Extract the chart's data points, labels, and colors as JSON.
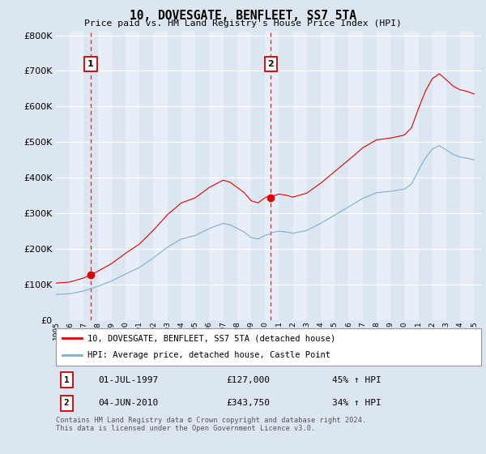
{
  "title": "10, DOVESGATE, BENFLEET, SS7 5TA",
  "subtitle": "Price paid vs. HM Land Registry's House Price Index (HPI)",
  "legend_line1": "10, DOVESGATE, BENFLEET, SS7 5TA (detached house)",
  "legend_line2": "HPI: Average price, detached house, Castle Point",
  "annotation1_date": "01-JUL-1997",
  "annotation1_price": "£127,000",
  "annotation1_hpi": "45% ↑ HPI",
  "annotation2_date": "04-JUN-2010",
  "annotation2_price": "£343,750",
  "annotation2_hpi": "34% ↑ HPI",
  "footer": "Contains HM Land Registry data © Crown copyright and database right 2024.\nThis data is licensed under the Open Government Licence v3.0.",
  "sale1_year": 1997.5,
  "sale1_value": 127000,
  "sale2_year": 2010.42,
  "sale2_value": 343750,
  "red_line_color": "#dd0000",
  "blue_line_color": "#7bafd4",
  "bg_color": "#dce6f0",
  "plot_bg_color": "#dce6f0",
  "chart_bg_color": "#e8eef7",
  "grid_color": "#ffffff",
  "annotation_box_color": "#cc0000",
  "ylim": [
    0,
    800000
  ],
  "xlim_start": 1995.0,
  "xlim_end": 2025.5
}
